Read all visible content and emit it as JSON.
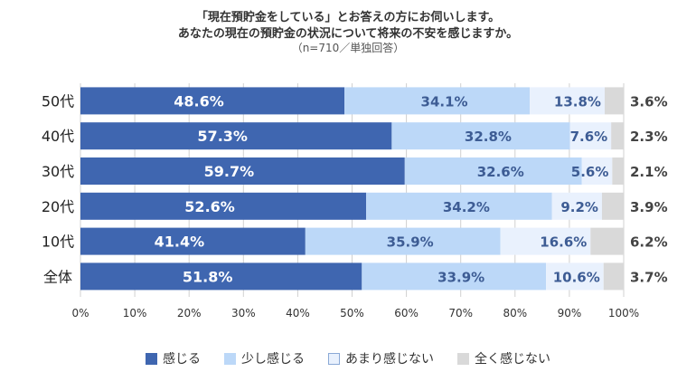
{
  "header": {
    "line1": "「現在預貯金をしている」とお答えの方にお伺いします。",
    "line2": "あなたの現在の預貯金の状況について将来の不安を感じますか。",
    "line3": "（n=710／単独回答）"
  },
  "chart_data": {
    "type": "bar",
    "orientation": "horizontal",
    "stacked": true,
    "categories": [
      "50代",
      "40代",
      "30代",
      "20代",
      "10代",
      "全体"
    ],
    "series": [
      {
        "name": "感じる",
        "values": [
          48.6,
          57.3,
          59.7,
          52.6,
          41.4,
          51.8
        ],
        "color": "#3f66b0",
        "label_color": "#ffffff"
      },
      {
        "name": "少し感じる",
        "values": [
          34.1,
          32.8,
          32.6,
          34.2,
          35.9,
          33.9
        ],
        "color": "#bcd8f8",
        "label_color": "#3d5c94"
      },
      {
        "name": "あまり感じない",
        "values": [
          13.8,
          7.6,
          5.6,
          9.2,
          16.6,
          10.6
        ],
        "color": "#e9f1fd",
        "label_color": "#3d5c94"
      },
      {
        "name": "全く感じない",
        "values": [
          3.6,
          2.3,
          2.1,
          3.9,
          6.2,
          3.7
        ],
        "color": "#d9d9d9",
        "label_color": "#555555"
      }
    ],
    "value_labels": {
      "感じる": [
        "48.6%",
        "57.3%",
        "59.7%",
        "52.6%",
        "41.4%",
        "51.8%"
      ],
      "少し感じる": [
        "34.1%",
        "32.8%",
        "32.6%",
        "34.2%",
        "35.9%",
        "33.9%"
      ],
      "あまり感じない": [
        "13.8%",
        "7.6%",
        "5.6%",
        "9.2%",
        "16.6%",
        "10.6%"
      ],
      "全く感じない": [
        "3.6%",
        "2.3%",
        "2.1%",
        "3.9%",
        "6.2%",
        "3.7%"
      ]
    },
    "x_ticks": [
      "0%",
      "10%",
      "20%",
      "30%",
      "40%",
      "50%",
      "60%",
      "70%",
      "80%",
      "90%",
      "100%"
    ],
    "xlim": [
      0,
      100
    ],
    "grid": true,
    "legend_position": "bottom"
  }
}
